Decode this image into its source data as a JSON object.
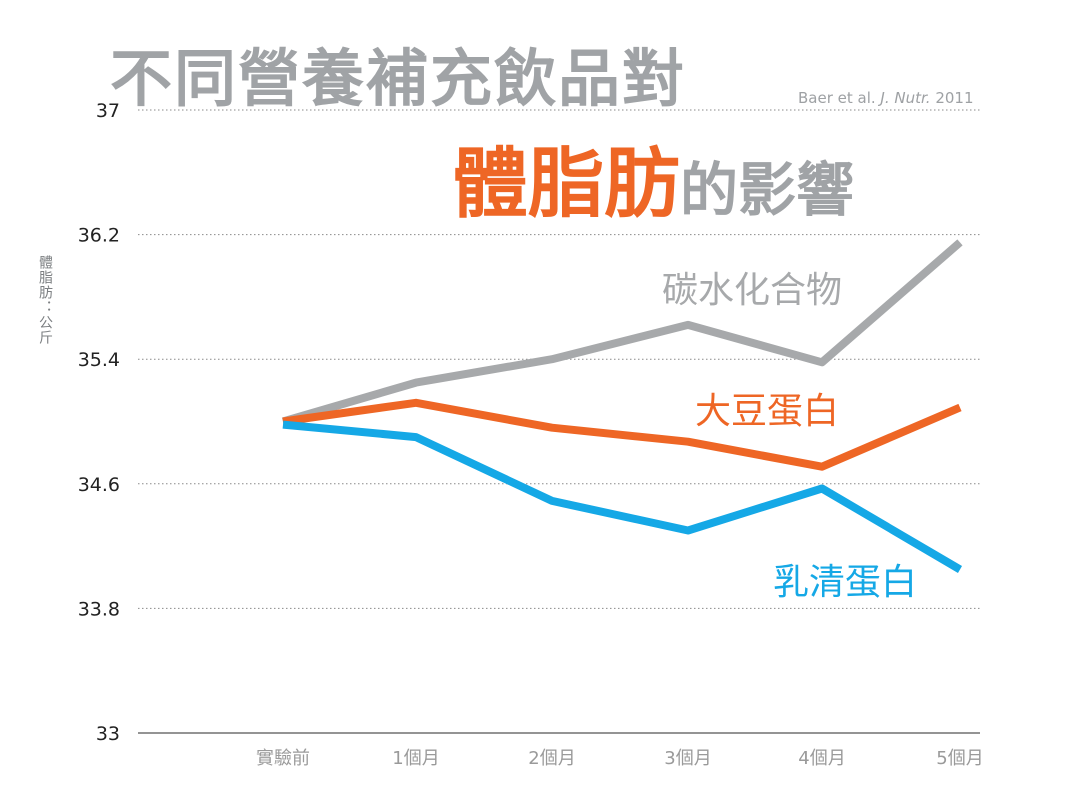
{
  "title": {
    "line1": "不同營養補充飲品對",
    "highlight": "體脂肪",
    "rest": "的影響"
  },
  "citation": {
    "authors": "Baer et al. ",
    "journal": "J. Nutr.",
    "year": " 2011"
  },
  "colors": {
    "carbohydrate": "#a7a9ab",
    "soy": "#ee6625",
    "whey": "#15a8e6",
    "title_gray": "#a0a3a6",
    "grid": "#8a8a8a",
    "tick_text": "#222222",
    "xtick_text": "#9a9a9a"
  },
  "chart_data": {
    "type": "line",
    "ylabel": "體脂肪：公斤",
    "xlabel": "",
    "categories": [
      "實驗前",
      "1個月",
      "2個月",
      "3個月",
      "4個月",
      "5個月"
    ],
    "yticks": [
      "37",
      "36.2",
      "35.4",
      "34.6",
      "33.8",
      "33"
    ],
    "ylim": [
      33,
      37
    ],
    "grid": "horizontal dotted",
    "legend": "inline labels",
    "series": [
      {
        "name": "碳水化合物",
        "key": "carbohydrate",
        "values": [
          35.0,
          35.25,
          35.4,
          35.62,
          35.38,
          36.15
        ]
      },
      {
        "name": "大豆蛋白",
        "key": "soy",
        "values": [
          35.0,
          35.12,
          34.96,
          34.87,
          34.71,
          35.09
        ]
      },
      {
        "name": "乳清蛋白",
        "key": "whey",
        "values": [
          34.98,
          34.9,
          34.49,
          34.3,
          34.57,
          34.05
        ]
      }
    ]
  }
}
